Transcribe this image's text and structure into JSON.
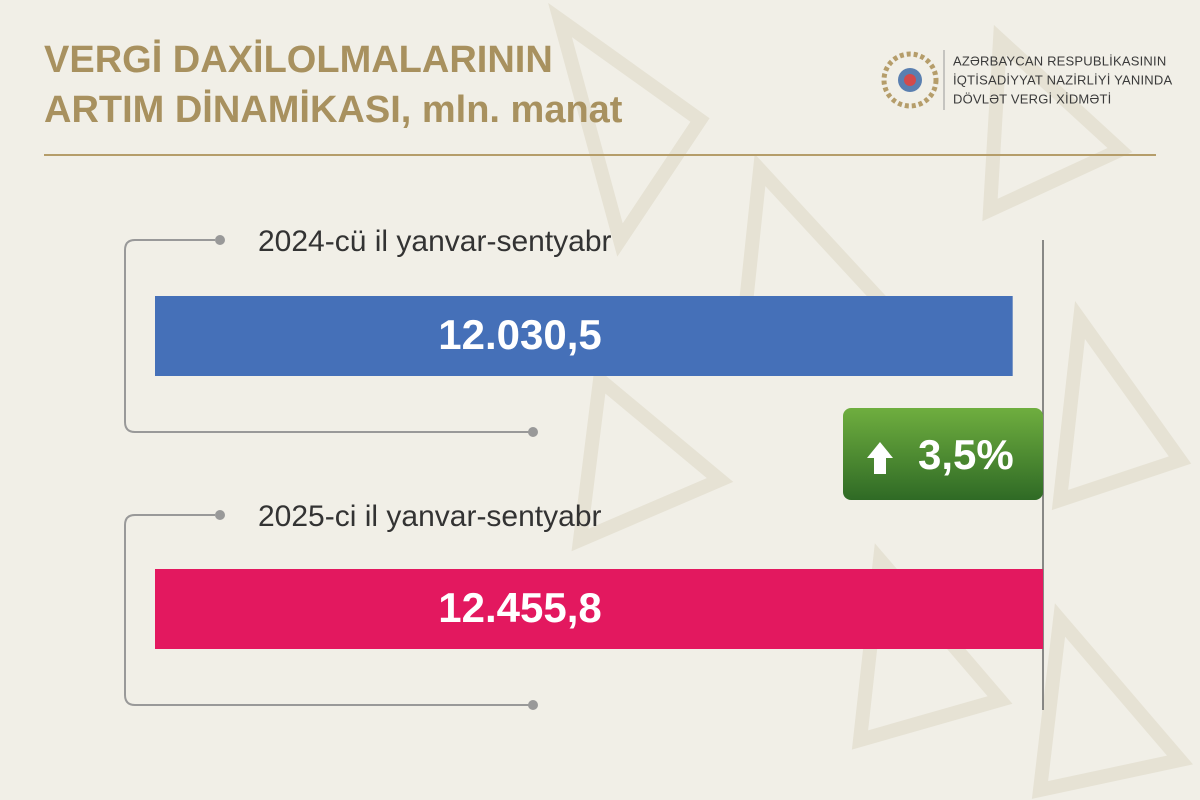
{
  "chart_data": {
    "type": "bar",
    "orientation": "horizontal",
    "title": [
      "VERGİ DAXİLOLMALARININ",
      "ARTIM DİNAMİKASI, mln. manat"
    ],
    "organization": [
      "AZƏRBAYCAN RESPUBLİKASININ",
      "İQTİSADİYYAT NAZİRLİYİ YANINDA",
      "DÖVLƏT VERGİ XİDMƏTİ"
    ],
    "categories": [
      "2024-cü il yanvar-sentyabr",
      "2025-ci il yanvar-sentyabr"
    ],
    "values": [
      12030.5,
      12455.8
    ],
    "value_labels": [
      "12.030,5",
      "12.455,8"
    ],
    "colors": [
      "#4570b8",
      "#e3185f"
    ],
    "annotation": "3,5%"
  }
}
